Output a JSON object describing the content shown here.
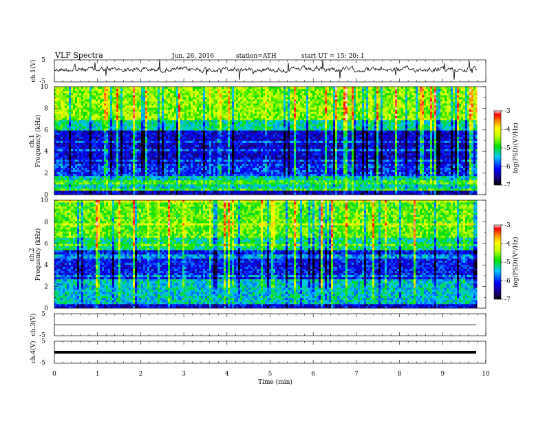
{
  "header": {
    "title": "VLF Spectra",
    "date": "Jun. 26, 2016",
    "station": "station=ATH",
    "start_ut": "start  UT =   15: 20: 1"
  },
  "colors": {
    "spectrum_low": "#000080",
    "spectrum_mid": "#00e000",
    "spectrum_high": "#d00000",
    "trace": "#000000"
  },
  "chart_data": [
    {
      "type": "line",
      "ylabel": "ch.1(V)",
      "ylim": [
        -5,
        5
      ],
      "ytick_labels": [
        "5",
        "-5"
      ],
      "xlim": [
        0,
        10
      ],
      "series": [
        {
          "values": []
        }
      ]
    },
    {
      "type": "heatmap",
      "ylabel": "Frequency (kHz)",
      "ylabel2": "ch.1",
      "ylim": [
        0,
        10
      ],
      "ytick_labels": [
        "0",
        "2",
        "4",
        "6",
        "8",
        "10"
      ],
      "colorbar": {
        "label": "log(PSD)(V²/Hz)",
        "range": [
          -7,
          -3
        ],
        "tick_labels": [
          "-7",
          "-6",
          "-5",
          "-4",
          "-3"
        ]
      }
    },
    {
      "type": "heatmap",
      "ylabel": "Frequency (kHz)",
      "ylabel2": "ch.2",
      "ylim": [
        0,
        10
      ],
      "ytick_labels": [
        "0",
        "2",
        "4",
        "6",
        "8",
        "10"
      ],
      "colorbar": {
        "label": "log(PSD)(V²/Hz)",
        "range": [
          -7,
          -3
        ],
        "tick_labels": [
          "-7",
          "-6",
          "-5",
          "-4",
          "-3"
        ]
      }
    },
    {
      "type": "line",
      "ylabel": "ch.3(V)",
      "ylim": [
        -5,
        5
      ],
      "ytick_labels": [
        "5",
        "-5"
      ],
      "series": [
        {
          "values": [
            0,
            0
          ]
        }
      ]
    },
    {
      "type": "line",
      "ylabel": "ch.4(V)",
      "ylim": [
        -5,
        5
      ],
      "ytick_labels": [
        "5",
        "-5"
      ],
      "series": [
        {
          "values": [
            0,
            0
          ]
        }
      ]
    }
  ],
  "x_axis": {
    "label": "Time (min)",
    "xlim": [
      0,
      10
    ],
    "tick_labels": [
      "0",
      "1",
      "2",
      "3",
      "4",
      "5",
      "6",
      "7",
      "8",
      "9",
      "10"
    ],
    "data_end": 9.8
  }
}
